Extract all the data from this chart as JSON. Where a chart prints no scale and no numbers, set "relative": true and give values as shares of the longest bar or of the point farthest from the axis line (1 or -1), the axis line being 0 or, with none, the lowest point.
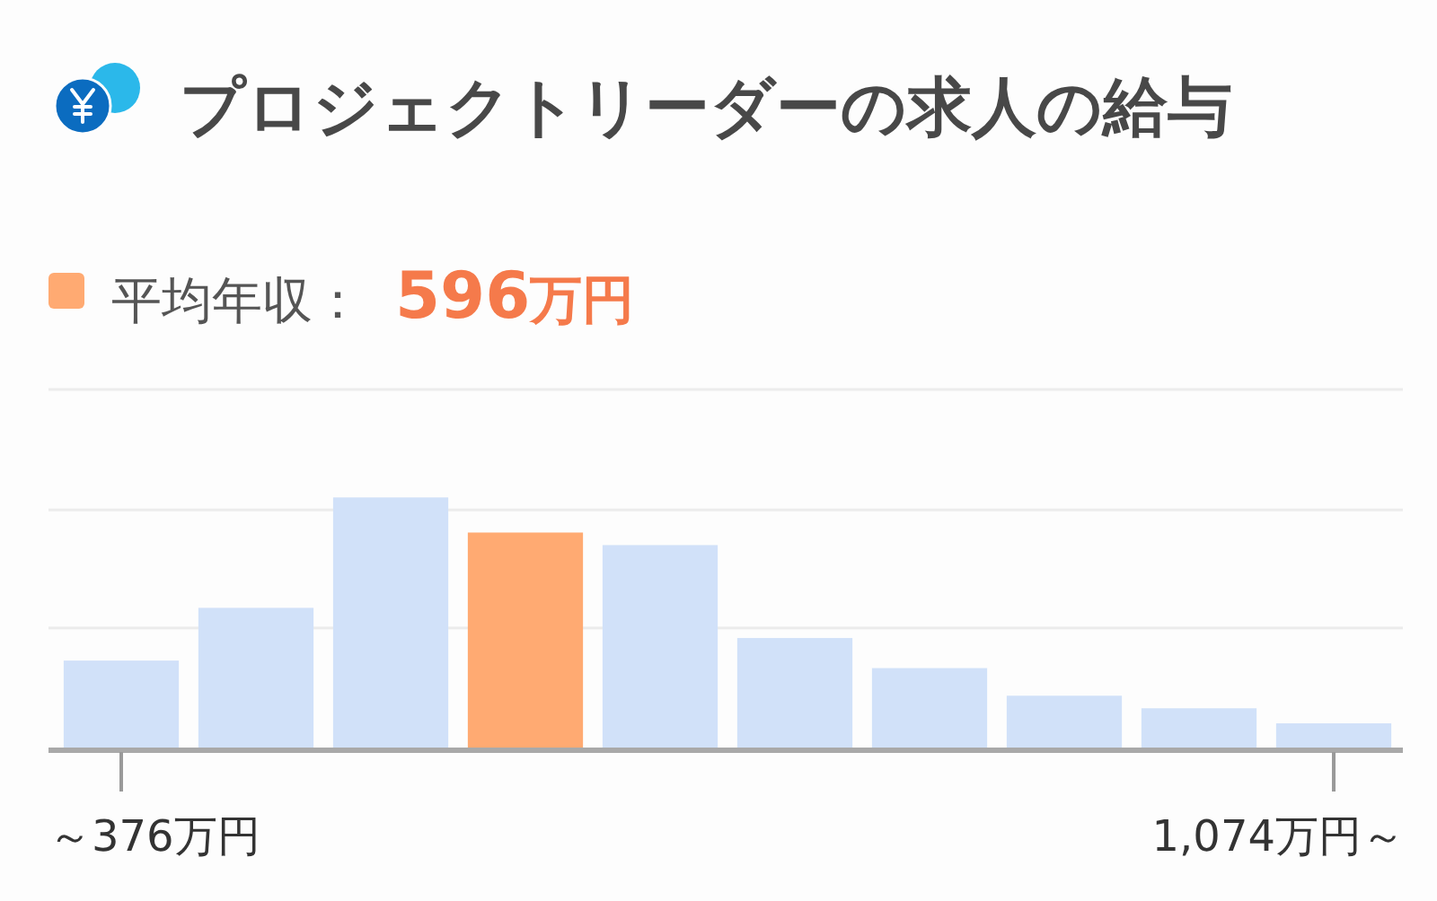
{
  "chart_data": {
    "type": "bar",
    "title": "プロジェクトリーダーの求人の給与",
    "categories": [
      "～376万円",
      null,
      null,
      null,
      null,
      null,
      null,
      null,
      null,
      "1,074万円～"
    ],
    "values": [
      0.35,
      0.56,
      1,
      0.86,
      0.81,
      0.44,
      0.32,
      0.21,
      0.16,
      0.1
    ],
    "relative": true,
    "colors": [
      "#d1e1f9",
      "#d1e1f9",
      "#d1e1f9",
      "#ffaa72",
      "#d1e1f9",
      "#d1e1f9",
      "#d1e1f9",
      "#d1e1f9",
      "#d1e1f9",
      "#d1e1f9"
    ],
    "ref_lines": [
      {
        "axis": "y",
        "value": 0.48,
        "color": "#ececec"
      },
      {
        "axis": "y",
        "value": 0.95,
        "color": "#ececec"
      },
      {
        "axis": "y",
        "value": 1.43,
        "color": "#ececec"
      }
    ],
    "annotations": [
      "平均年収：",
      "596万円"
    ]
  }
}
